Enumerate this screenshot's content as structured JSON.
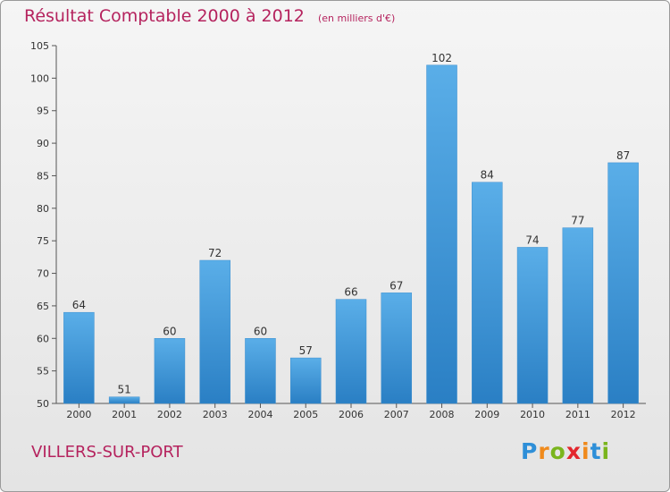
{
  "header": {
    "title": "Résultat Comptable 2000 à 2012",
    "subtitle": "(en milliers d'€)"
  },
  "footer": {
    "place": "VILLERS-SUR-PORT",
    "logo": {
      "text": "Proxiti",
      "letters": [
        {
          "ch": "P",
          "color": "#2e8fd8"
        },
        {
          "ch": "r",
          "color": "#f08a1c"
        },
        {
          "ch": "o",
          "color": "#7ab51d"
        },
        {
          "ch": "x",
          "color": "#e3262d"
        },
        {
          "ch": "i",
          "color": "#f08a1c"
        },
        {
          "ch": "t",
          "color": "#2e8fd8"
        },
        {
          "ch": "i",
          "color": "#7ab51d"
        }
      ]
    }
  },
  "colors": {
    "accent": "#b5235e",
    "bar_top": "#5aaee8",
    "bar_bottom": "#2a7fc4"
  },
  "chart_data": {
    "type": "bar",
    "categories": [
      "2000",
      "2001",
      "2002",
      "2003",
      "2004",
      "2005",
      "2006",
      "2007",
      "2008",
      "2009",
      "2010",
      "2011",
      "2012"
    ],
    "values": [
      64,
      51,
      60,
      72,
      60,
      57,
      66,
      67,
      102,
      84,
      74,
      77,
      87
    ],
    "data_labels": [
      "64",
      "51",
      "60",
      "72",
      "60",
      "57",
      "66",
      "67",
      "102",
      "84",
      "74",
      "77",
      "87"
    ],
    "yticks": [
      50,
      55,
      60,
      65,
      70,
      75,
      80,
      85,
      90,
      95,
      100,
      105
    ],
    "ylim": [
      50,
      105
    ],
    "grid": false,
    "legend": "none"
  }
}
